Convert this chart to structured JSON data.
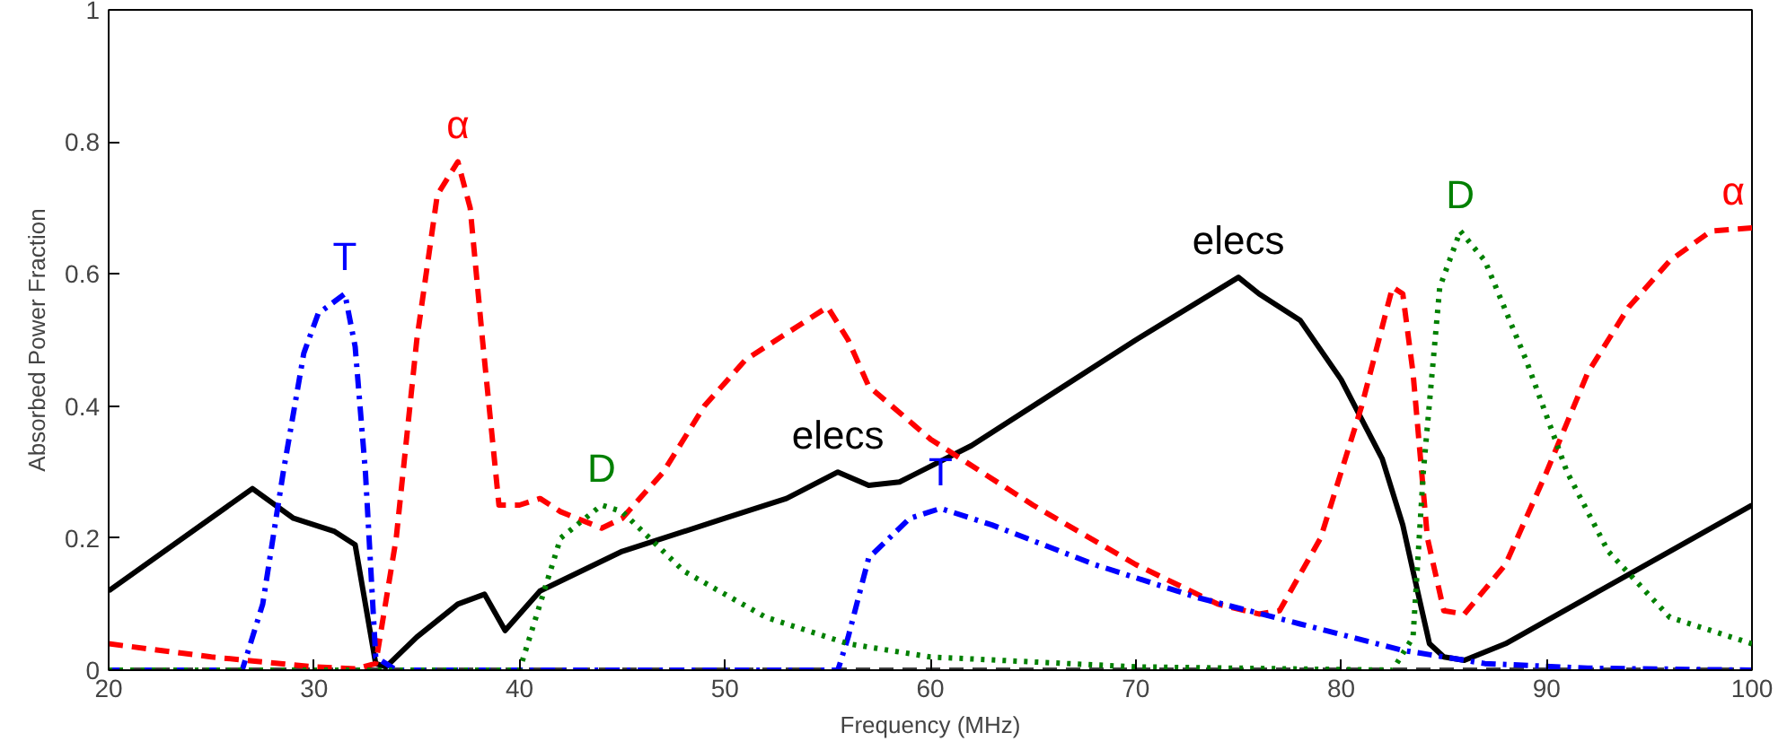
{
  "chart_data": {
    "type": "line",
    "xlabel": "Frequency (MHz)",
    "ylabel": "Absorbed Power Fraction",
    "xlim": [
      20,
      100
    ],
    "ylim": [
      0,
      1
    ],
    "xticks": [
      20,
      30,
      40,
      50,
      60,
      70,
      80,
      90,
      100
    ],
    "yticks": [
      0,
      0.2,
      0.4,
      0.6,
      0.8,
      1
    ],
    "grid": false,
    "legend": false,
    "series": [
      {
        "color": "#404040",
        "line_style": "dashed",
        "x": [
          20,
          100
        ],
        "values": [
          0,
          0
        ]
      },
      {
        "name": "elecs",
        "color": "#000000",
        "line_style": "solid",
        "x": [
          20,
          27,
          29,
          31,
          32,
          32.5,
          33,
          33.5,
          35,
          37,
          38.3,
          39.3,
          41,
          45,
          50,
          53,
          55.5,
          57,
          58.5,
          62,
          66,
          70,
          75,
          76,
          78,
          80,
          82,
          83,
          83.5,
          84.3,
          85,
          86,
          88,
          92,
          96,
          100
        ],
        "values": [
          0.12,
          0.275,
          0.23,
          0.21,
          0.19,
          0.1,
          0.01,
          0.005,
          0.05,
          0.1,
          0.115,
          0.06,
          0.12,
          0.18,
          0.23,
          0.26,
          0.3,
          0.28,
          0.285,
          0.34,
          0.42,
          0.5,
          0.595,
          0.57,
          0.53,
          0.44,
          0.32,
          0.22,
          0.15,
          0.04,
          0.02,
          0.015,
          0.04,
          0.11,
          0.18,
          0.25
        ]
      },
      {
        "name": "α",
        "color": "#ff0000",
        "line_style": "dashed",
        "x": [
          20,
          25,
          30,
          32,
          33,
          34,
          35,
          36,
          37,
          37.6,
          38.2,
          39,
          40,
          41,
          42,
          44,
          45,
          47,
          49,
          51,
          53,
          55,
          56,
          57,
          60,
          65,
          70,
          74,
          76,
          77,
          79,
          81,
          82.5,
          83,
          83.5,
          84.2,
          85,
          86,
          88,
          90,
          92,
          94,
          96,
          98,
          100
        ],
        "values": [
          0.04,
          0.02,
          0.005,
          0.002,
          0.01,
          0.2,
          0.5,
          0.72,
          0.77,
          0.7,
          0.5,
          0.25,
          0.25,
          0.26,
          0.24,
          0.215,
          0.23,
          0.3,
          0.4,
          0.47,
          0.51,
          0.55,
          0.5,
          0.43,
          0.35,
          0.25,
          0.16,
          0.1,
          0.085,
          0.09,
          0.2,
          0.4,
          0.58,
          0.57,
          0.45,
          0.2,
          0.09,
          0.085,
          0.16,
          0.3,
          0.45,
          0.55,
          0.62,
          0.665,
          0.67
        ]
      },
      {
        "name": "T",
        "color": "#0000ff",
        "line_style": "dashdot",
        "x": [
          20,
          26.5,
          27.5,
          28.5,
          29.5,
          30.2,
          31.5,
          32,
          32.5,
          33,
          34,
          55.5,
          56,
          57,
          59,
          60.5,
          63,
          68,
          73,
          78,
          83,
          87,
          92,
          100
        ],
        "values": [
          0,
          0,
          0.1,
          0.3,
          0.48,
          0.54,
          0.57,
          0.49,
          0.3,
          0.02,
          0,
          0,
          0.05,
          0.17,
          0.23,
          0.245,
          0.22,
          0.16,
          0.11,
          0.07,
          0.03,
          0.01,
          0.003,
          0
        ]
      },
      {
        "name": "D",
        "color": "#008000",
        "line_style": "dotted",
        "x": [
          20,
          40,
          41,
          42,
          44,
          45,
          48,
          52,
          56,
          60,
          70,
          82.5,
          83.5,
          84,
          84.8,
          85.8,
          87,
          89,
          91,
          93,
          96,
          100
        ],
        "values": [
          0,
          0,
          0.1,
          0.2,
          0.25,
          0.24,
          0.15,
          0.08,
          0.04,
          0.02,
          0.005,
          0,
          0.05,
          0.3,
          0.58,
          0.665,
          0.62,
          0.47,
          0.3,
          0.18,
          0.08,
          0.04
        ]
      }
    ]
  }
}
